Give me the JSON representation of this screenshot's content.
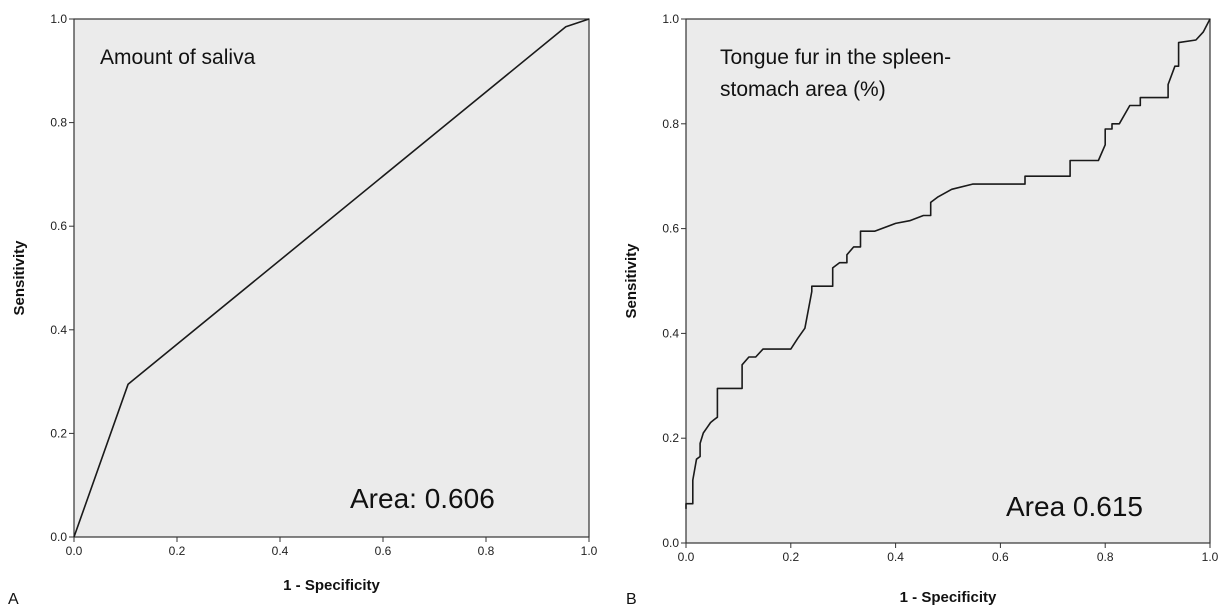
{
  "chart_data": [
    {
      "type": "line",
      "panel_letter": "A",
      "title": "Amount of saliva",
      "annotation": "Area: 0.606",
      "xlabel": "1 - Specificity",
      "ylabel": "Sensitivity",
      "xlim": [
        0,
        1
      ],
      "ylim": [
        0,
        1
      ],
      "xticks": [
        "0.0",
        "0.2",
        "0.4",
        "0.6",
        "0.8",
        "1.0"
      ],
      "yticks": [
        "0.0",
        "0.2",
        "0.4",
        "0.6",
        "0.8",
        "1.0"
      ],
      "background": "#ebebeb",
      "series": [
        {
          "x": [
            0.0,
            0.105,
            0.955,
            1.0
          ],
          "y": [
            0.0,
            0.295,
            0.985,
            1.0
          ]
        }
      ]
    },
    {
      "type": "line",
      "panel_letter": "B",
      "title": "Tongue fur in the spleen-\nstomach area (%)",
      "annotation": "Area 0.615",
      "xlabel": "1 - Specificity",
      "ylabel": "Sensitivity",
      "xlim": [
        0,
        1
      ],
      "ylim": [
        0,
        1
      ],
      "xticks": [
        "0.0",
        "0.2",
        "0.4",
        "0.6",
        "0.8",
        "1.0"
      ],
      "yticks": [
        "0.0",
        "0.2",
        "0.4",
        "0.6",
        "0.8",
        "1.0"
      ],
      "background": "#ebebeb",
      "series": [
        {
          "x": [
            0.0,
            0.0,
            0.013,
            0.013,
            0.02,
            0.027,
            0.027,
            0.033,
            0.04,
            0.047,
            0.053,
            0.06,
            0.06,
            0.107,
            0.107,
            0.12,
            0.133,
            0.147,
            0.16,
            0.2,
            0.213,
            0.227,
            0.24,
            0.24,
            0.253,
            0.28,
            0.28,
            0.293,
            0.307,
            0.307,
            0.32,
            0.333,
            0.333,
            0.36,
            0.4,
            0.427,
            0.453,
            0.467,
            0.467,
            0.48,
            0.507,
            0.547,
            0.647,
            0.647,
            0.733,
            0.733,
            0.787,
            0.8,
            0.8,
            0.813,
            0.813,
            0.827,
            0.847,
            0.867,
            0.867,
            0.92,
            0.92,
            0.933,
            0.94,
            0.94,
            0.973,
            0.987,
            1.0
          ],
          "y": [
            0.065,
            0.075,
            0.075,
            0.12,
            0.16,
            0.165,
            0.19,
            0.21,
            0.22,
            0.23,
            0.235,
            0.24,
            0.295,
            0.295,
            0.34,
            0.355,
            0.355,
            0.37,
            0.37,
            0.37,
            0.39,
            0.41,
            0.48,
            0.49,
            0.49,
            0.49,
            0.525,
            0.535,
            0.535,
            0.55,
            0.565,
            0.565,
            0.595,
            0.595,
            0.61,
            0.615,
            0.625,
            0.625,
            0.65,
            0.66,
            0.675,
            0.685,
            0.685,
            0.7,
            0.7,
            0.73,
            0.73,
            0.76,
            0.79,
            0.79,
            0.8,
            0.8,
            0.835,
            0.835,
            0.85,
            0.85,
            0.875,
            0.91,
            0.91,
            0.955,
            0.96,
            0.975,
            1.0
          ]
        }
      ]
    }
  ]
}
